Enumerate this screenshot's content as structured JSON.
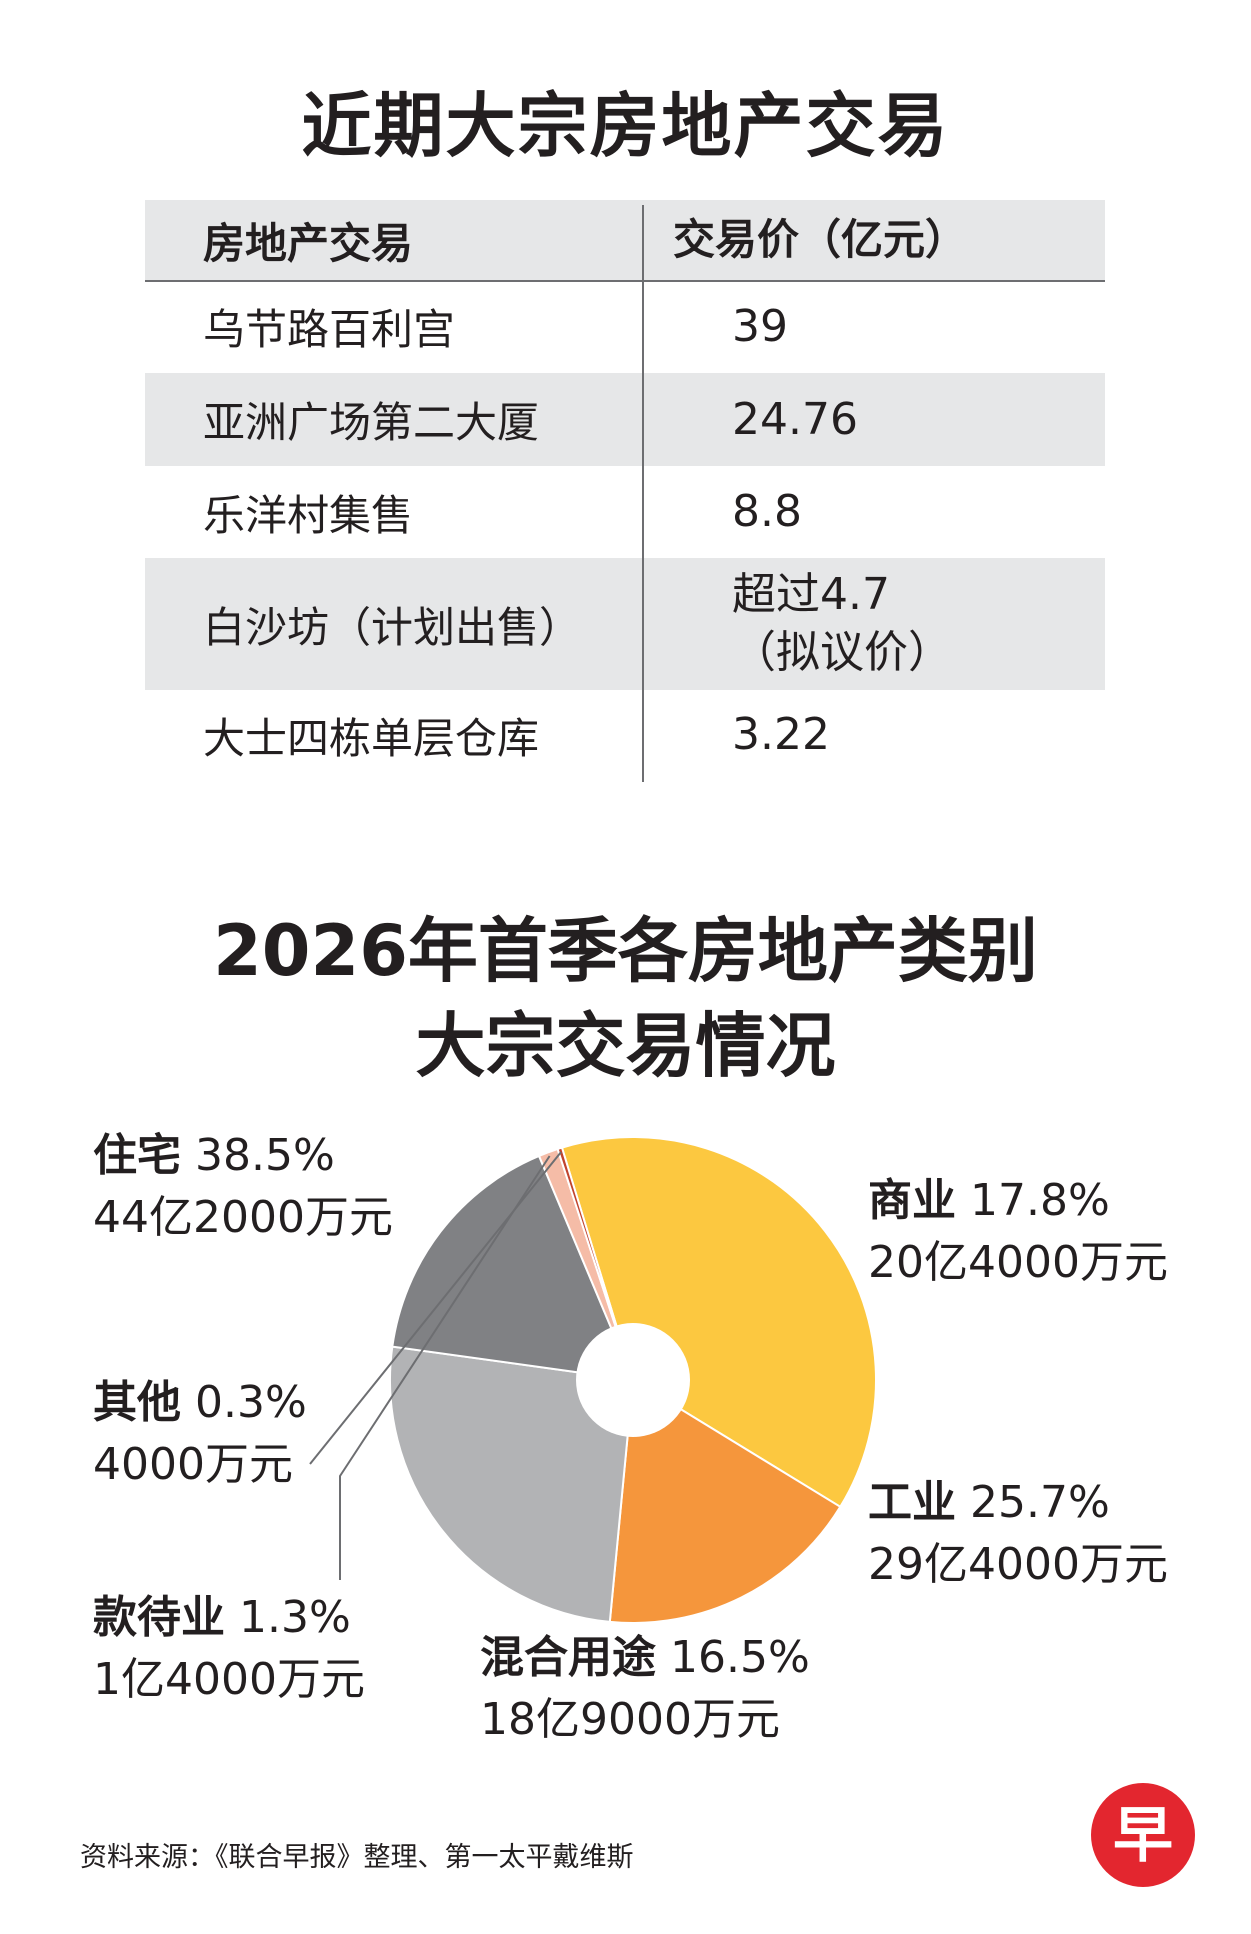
{
  "table_title": "近期大宗房地产交易",
  "table": {
    "headers": [
      "房地产交易",
      "交易价（亿元）"
    ],
    "rows": [
      {
        "name": "乌节路百利宫",
        "price": "39"
      },
      {
        "name": "亚洲广场第二大厦",
        "price": "24.76"
      },
      {
        "name": "乐洋村集售",
        "price": "8.8"
      },
      {
        "name": "白沙坊（计划出售）",
        "price": "超过4.7",
        "price2": "（拟议价）"
      },
      {
        "name": "大士四栋单层仓库",
        "price": "3.22"
      }
    ]
  },
  "chart_title_line1": "2026年首季各房地产类别",
  "chart_title_line2": "大宗交易情况",
  "chart_data": {
    "type": "pie",
    "donut": true,
    "slices": [
      {
        "label": "住宅",
        "percent": 38.5,
        "percent_text": "38.5%",
        "amount": "44亿2000万元",
        "color": "#fcc840"
      },
      {
        "label": "商业",
        "percent": 17.8,
        "percent_text": "17.8%",
        "amount": "20亿4000万元",
        "color": "#f5963c"
      },
      {
        "label": "工业",
        "percent": 25.7,
        "percent_text": "25.7%",
        "amount": "29亿4000万元",
        "color": "#b2b3b5"
      },
      {
        "label": "混合用途",
        "percent": 16.5,
        "percent_text": "16.5%",
        "amount": "18亿9000万元",
        "color": "#808184"
      },
      {
        "label": "款待业",
        "percent": 1.3,
        "percent_text": "1.3%",
        "amount": "1亿4000万元",
        "color": "#f5bca7"
      },
      {
        "label": "其他",
        "percent": 0.3,
        "percent_text": "0.3%",
        "amount": "4000万元",
        "color": "#c1442e"
      }
    ]
  },
  "source": "资料来源：《联合早报》整理、第一太平戴维斯",
  "logo_char": "早",
  "logo_color": "#e3262f"
}
